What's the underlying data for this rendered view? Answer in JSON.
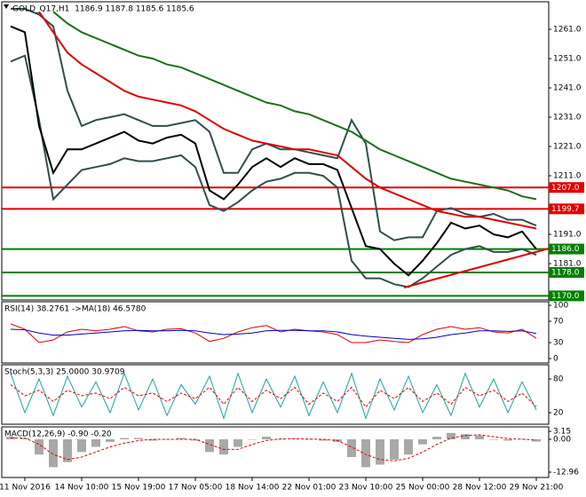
{
  "chart_data": [
    {
      "type": "line",
      "title": "GOLD_Q17,H1  1186.9 1187.8 1185.6 1185.6",
      "x": [
        1,
        2,
        3,
        4,
        5,
        6,
        7,
        8,
        9,
        10,
        11,
        12,
        13,
        14,
        15,
        16,
        17,
        18,
        19,
        20,
        21,
        22,
        23,
        24,
        25,
        26,
        27,
        28,
        29,
        30,
        31,
        32,
        33,
        34,
        35,
        36,
        37,
        38
      ],
      "xlim": [
        0.375,
        38.875
      ],
      "xticks": [
        {
          "value": 2,
          "label": "11 Nov 2016"
        },
        {
          "value": 6,
          "label": "14 Nov 10:00"
        },
        {
          "value": 10,
          "label": "15 Nov 19:00"
        },
        {
          "value": 14,
          "label": "17 Nov 05:00"
        },
        {
          "value": 18,
          "label": "18 Nov 14:00"
        },
        {
          "value": 22,
          "label": "22 Nov 01:00"
        },
        {
          "value": 26,
          "label": "23 Nov 10:00"
        },
        {
          "value": 30,
          "label": "25 Nov 00:00"
        },
        {
          "value": 34,
          "label": "28 Nov 12:00"
        },
        {
          "value": 38,
          "label": "29 Nov 21:00"
        }
      ],
      "ylim": [
        1168.6,
        1270.4
      ],
      "yticks": [
        {
          "value": 1181,
          "label": "1181.0"
        },
        {
          "value": 1191,
          "label": "1191.0"
        },
        {
          "value": 1211,
          "label": "1211.0"
        },
        {
          "value": 1221,
          "label": "1221.0"
        },
        {
          "value": 1231,
          "label": "1231.0"
        },
        {
          "value": 1241,
          "label": "1241.0"
        },
        {
          "value": 1251,
          "label": "1251.0"
        },
        {
          "value": 1261,
          "label": "1261.0"
        }
      ],
      "levels": [
        {
          "value": 1207,
          "label": "1207.0",
          "color": "#e00000"
        },
        {
          "value": 1199.7,
          "label": "1199.7",
          "color": "#e00000"
        },
        {
          "value": 1186,
          "label": "1186.0",
          "color": "#008000"
        },
        {
          "value": 1178,
          "label": "1178.0",
          "color": "#008000"
        },
        {
          "value": 1170,
          "label": "1170.0",
          "color": "#008000"
        }
      ],
      "series": [
        {
          "color": "#2f4f4f",
          "values": [
            1268,
            1268,
            1266,
            1262,
            1240,
            1228,
            1230,
            1231,
            1232,
            1230,
            1228,
            1228,
            1229,
            1230,
            1226,
            1212,
            1212,
            1220,
            1222,
            1220,
            1220,
            1219,
            1218,
            1217,
            1230,
            1222,
            1192,
            1189,
            1190,
            1190,
            1199,
            1200,
            1198,
            1197,
            1198,
            1196,
            1196,
            1194
          ]
        },
        {
          "color": "#2f4f4f",
          "values": [
            1250,
            1252,
            1230,
            1203,
            1208,
            1213,
            1214,
            1215,
            1217,
            1216,
            1216,
            1217,
            1218,
            1214,
            1201,
            1199,
            1202,
            1206,
            1209,
            1210,
            1212,
            1212,
            1211,
            1207,
            1182,
            1176,
            1176,
            1174,
            1173,
            1176,
            1180,
            1184,
            1186,
            1187,
            1185,
            1185,
            1186,
            1184
          ]
        },
        {
          "color": "#1e6e1e",
          "values": [
            null,
            null,
            null,
            1267,
            1263,
            1260,
            1258,
            1256,
            1254,
            1252,
            1251,
            1249,
            1248,
            1246,
            1244,
            1242,
            1240,
            1238,
            1236,
            1235,
            1233,
            1232,
            1230,
            1228,
            1226,
            1223,
            1220,
            1218,
            1216,
            1214,
            1212,
            1210,
            1209,
            1208,
            1207,
            1206,
            1204,
            1203
          ]
        },
        {
          "color": "#e00000",
          "values": [
            null,
            null,
            1267,
            1260,
            1253,
            1249,
            1246,
            1243,
            1240,
            1238,
            1237,
            1236,
            1235,
            1233,
            1230,
            1227,
            1225,
            1223,
            1222,
            1221,
            1220,
            1220,
            1219,
            1218,
            1214,
            1210,
            1207,
            1205,
            1203,
            1201,
            1199,
            1198,
            1197,
            1197,
            1196,
            1195,
            1194,
            1193
          ]
        },
        {
          "color": "#000000",
          "values": [
            1262,
            1260,
            1228,
            1212,
            1220,
            1220,
            1222,
            1224,
            1226,
            1223,
            1222,
            1224,
            1225,
            1222,
            1206,
            1203,
            1208,
            1214,
            1217,
            1214,
            1217,
            1215,
            1215,
            1213,
            1200,
            1187,
            1186,
            1181,
            1177,
            1182,
            1188,
            1195,
            1193,
            1194,
            1191,
            1190,
            1192,
            1186
          ]
        }
      ]
    },
    {
      "type": "line",
      "title": "RSI(14) 38.2761 ->MA(18) 46.5780",
      "ylim": [
        -8.3,
        106.7
      ],
      "yticks": [
        0,
        30,
        70,
        100
      ],
      "series": [
        {
          "color": "#e00000",
          "values": [
            65,
            55,
            30,
            35,
            50,
            55,
            52,
            55,
            60,
            52,
            50,
            55,
            56,
            48,
            32,
            38,
            50,
            58,
            62,
            50,
            55,
            52,
            50,
            45,
            30,
            30,
            35,
            32,
            30,
            45,
            55,
            60,
            55,
            58,
            50,
            48,
            55,
            38
          ]
        },
        {
          "color": "#0000c0",
          "values": [
            55,
            54,
            48,
            44,
            44,
            46,
            48,
            50,
            52,
            53,
            52,
            52,
            53,
            52,
            48,
            45,
            46,
            48,
            52,
            53,
            53,
            52,
            52,
            50,
            45,
            42,
            40,
            38,
            36,
            37,
            40,
            45,
            48,
            52,
            52,
            51,
            52,
            47
          ]
        }
      ]
    },
    {
      "type": "line",
      "title": "Stoch(5,3,3) 25.0000 30.9709",
      "ylim": [
        -0.5,
        105.3
      ],
      "yticks": [
        20,
        80
      ],
      "series": [
        {
          "color": "#20a0a0",
          "values": [
            90,
            20,
            80,
            15,
            85,
            30,
            75,
            20,
            90,
            25,
            80,
            15,
            70,
            35,
            85,
            10,
            90,
            20,
            80,
            30,
            85,
            15,
            75,
            20,
            90,
            10,
            80,
            25,
            85,
            20,
            70,
            15,
            90,
            30,
            80,
            20,
            75,
            25
          ]
        },
        {
          "color": "#e00000",
          "dash": true,
          "values": [
            70,
            50,
            60,
            40,
            60,
            50,
            55,
            45,
            65,
            50,
            55,
            40,
            55,
            45,
            65,
            35,
            65,
            40,
            60,
            45,
            65,
            35,
            55,
            40,
            65,
            30,
            60,
            45,
            65,
            40,
            55,
            35,
            65,
            50,
            60,
            40,
            55,
            31
          ]
        }
      ]
    },
    {
      "type": "bar",
      "title": "MACD(12,26,9) -0.90 -0.20",
      "ylim": [
        -15.06,
        4.9
      ],
      "yticks": [
        -12.96,
        {
          "value": 0,
          "label": "0.00"
        },
        3.15
      ],
      "series": [
        {
          "type": "bar",
          "color": "#a8a8a8",
          "values": [
            1,
            0.5,
            -6,
            -11,
            -9,
            -5,
            -3,
            -1,
            0.5,
            0.5,
            -0.5,
            0,
            0.5,
            -0.5,
            -5,
            -6,
            -3,
            0,
            1,
            0,
            0.3,
            0,
            -0.5,
            -1,
            -7,
            -11,
            -10,
            -8,
            -6,
            -2,
            1,
            2.5,
            2,
            1.5,
            0,
            -0.5,
            0.2,
            -0.9
          ]
        },
        {
          "type": "line",
          "color": "#e00000",
          "dash": true,
          "values": [
            0.5,
            0.5,
            -2,
            -6,
            -8,
            -7,
            -5,
            -3,
            -1.5,
            -0.5,
            0,
            0,
            0,
            0,
            -2,
            -4,
            -4,
            -2,
            -0.5,
            0.2,
            0.2,
            0.1,
            0,
            -0.5,
            -3,
            -6,
            -8,
            -8.5,
            -7.5,
            -5,
            -2,
            0.5,
            1.5,
            1.8,
            1,
            0.3,
            0,
            -0.2
          ]
        }
      ]
    }
  ]
}
